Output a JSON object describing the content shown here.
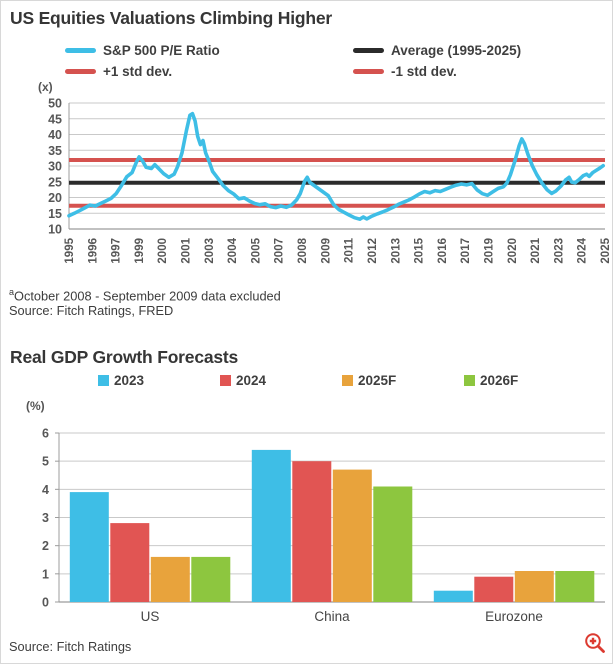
{
  "colors": {
    "series_cyan": "#3EBEE6",
    "series_red": "#D5524F",
    "series_black": "#2B2B2B",
    "bar_cyan": "#3EBEE6",
    "bar_red": "#E15553",
    "bar_orange": "#E8A33C",
    "bar_green": "#8DC63F",
    "grid": "#c9c9c9",
    "axis": "#9c9c9c",
    "zoom_icon_red": "#DC3A30"
  },
  "icons": {
    "zoom_button": "zoom-in-magnifier"
  },
  "chart_data": [
    {
      "type": "line",
      "title": "US Equities Valuations Climbing Higher",
      "unit_label": "(x)",
      "xlabel": "",
      "ylabel": "(x)",
      "ylim": [
        10,
        50
      ],
      "yticks": [
        10,
        15,
        20,
        25,
        30,
        35,
        40,
        45,
        50
      ],
      "x_range": [
        1995,
        2025.6
      ],
      "xtick_labels": [
        "1995",
        "1996",
        "1997",
        "1999",
        "2000",
        "2001",
        "2003",
        "2004",
        "2005",
        "2007",
        "2008",
        "2009",
        "2011",
        "2012",
        "2013",
        "2015",
        "2016",
        "2017",
        "2019",
        "2020",
        "2021",
        "2023",
        "2024",
        "2025"
      ],
      "grid": true,
      "legend_position": "top",
      "series": [
        {
          "name": "S&P 500 P/E Ratio",
          "type": "line",
          "color": "#3EBEE6",
          "points": [
            [
              1995.0,
              14.2
            ],
            [
              1995.3,
              15.0
            ],
            [
              1995.6,
              15.8
            ],
            [
              1995.9,
              16.7
            ],
            [
              1996.2,
              17.6
            ],
            [
              1996.5,
              17.3
            ],
            [
              1996.8,
              18.1
            ],
            [
              1997.1,
              18.9
            ],
            [
              1997.4,
              19.7
            ],
            [
              1997.7,
              21.3
            ],
            [
              1998.0,
              23.8
            ],
            [
              1998.3,
              26.6
            ],
            [
              1998.6,
              27.9
            ],
            [
              1998.85,
              31.2
            ],
            [
              1999.0,
              32.9
            ],
            [
              1999.2,
              31.6
            ],
            [
              1999.4,
              29.6
            ],
            [
              1999.7,
              29.2
            ],
            [
              1999.9,
              30.4
            ],
            [
              2000.1,
              29.3
            ],
            [
              2000.4,
              27.6
            ],
            [
              2000.7,
              26.4
            ],
            [
              2001.0,
              27.4
            ],
            [
              2001.2,
              29.8
            ],
            [
              2001.45,
              34.2
            ],
            [
              2001.7,
              41.2
            ],
            [
              2001.9,
              46.1
            ],
            [
              2002.05,
              46.6
            ],
            [
              2002.2,
              44.3
            ],
            [
              2002.35,
              39.4
            ],
            [
              2002.5,
              36.8
            ],
            [
              2002.65,
              38.1
            ],
            [
              2002.8,
              34.2
            ],
            [
              2003.0,
              31.5
            ],
            [
              2003.2,
              28.3
            ],
            [
              2003.5,
              26.1
            ],
            [
              2003.8,
              23.8
            ],
            [
              2004.1,
              22.2
            ],
            [
              2004.4,
              21.1
            ],
            [
              2004.7,
              19.6
            ],
            [
              2005.0,
              19.9
            ],
            [
              2005.3,
              18.9
            ],
            [
              2005.6,
              18.1
            ],
            [
              2005.9,
              17.7
            ],
            [
              2006.2,
              18.0
            ],
            [
              2006.5,
              17.1
            ],
            [
              2006.8,
              16.8
            ],
            [
              2007.1,
              17.3
            ],
            [
              2007.4,
              16.9
            ],
            [
              2007.7,
              17.6
            ],
            [
              2008.0,
              19.3
            ],
            [
              2008.2,
              21.2
            ],
            [
              2008.45,
              25.1
            ],
            [
              2008.6,
              26.4
            ],
            [
              2008.75,
              24.8
            ],
            [
              2009.8,
              20.6
            ],
            [
              2010.1,
              17.8
            ],
            [
              2010.4,
              16.2
            ],
            [
              2010.7,
              15.3
            ],
            [
              2011.0,
              14.4
            ],
            [
              2011.3,
              13.6
            ],
            [
              2011.6,
              13.1
            ],
            [
              2011.8,
              13.8
            ],
            [
              2012.0,
              13.2
            ],
            [
              2012.3,
              14.1
            ],
            [
              2012.6,
              14.8
            ],
            [
              2012.9,
              15.4
            ],
            [
              2013.2,
              16.1
            ],
            [
              2013.5,
              16.9
            ],
            [
              2013.8,
              17.8
            ],
            [
              2014.1,
              18.5
            ],
            [
              2014.4,
              19.2
            ],
            [
              2014.7,
              20.1
            ],
            [
              2015.0,
              21.1
            ],
            [
              2015.3,
              21.9
            ],
            [
              2015.6,
              21.5
            ],
            [
              2015.9,
              22.2
            ],
            [
              2016.2,
              21.9
            ],
            [
              2016.5,
              22.6
            ],
            [
              2016.8,
              23.3
            ],
            [
              2017.1,
              23.9
            ],
            [
              2017.4,
              24.3
            ],
            [
              2017.7,
              24.0
            ],
            [
              2018.0,
              24.4
            ],
            [
              2018.3,
              22.4
            ],
            [
              2018.6,
              21.2
            ],
            [
              2018.9,
              20.7
            ],
            [
              2019.2,
              21.8
            ],
            [
              2019.5,
              22.9
            ],
            [
              2019.8,
              23.4
            ],
            [
              2020.0,
              24.6
            ],
            [
              2020.2,
              27.2
            ],
            [
              2020.45,
              31.5
            ],
            [
              2020.7,
              36.5
            ],
            [
              2020.85,
              38.6
            ],
            [
              2021.0,
              37.1
            ],
            [
              2021.2,
              33.7
            ],
            [
              2021.45,
              30.1
            ],
            [
              2021.7,
              27.3
            ],
            [
              2022.0,
              24.6
            ],
            [
              2022.3,
              22.4
            ],
            [
              2022.55,
              21.3
            ],
            [
              2022.8,
              22.1
            ],
            [
              2023.1,
              23.7
            ],
            [
              2023.35,
              25.6
            ],
            [
              2023.55,
              26.4
            ],
            [
              2023.7,
              24.9
            ],
            [
              2023.9,
              24.7
            ],
            [
              2024.1,
              25.6
            ],
            [
              2024.35,
              26.9
            ],
            [
              2024.55,
              27.4
            ],
            [
              2024.7,
              26.7
            ],
            [
              2024.9,
              27.9
            ],
            [
              2025.1,
              28.6
            ],
            [
              2025.3,
              29.3
            ],
            [
              2025.5,
              30.1
            ]
          ]
        },
        {
          "name": "Average (1995-2025)",
          "type": "hline",
          "color": "#2B2B2B",
          "value": 24.7
        },
        {
          "name": "+1 std dev.",
          "type": "hline",
          "color": "#D5524F",
          "value": 31.9
        },
        {
          "name": "-1 std dev.",
          "type": "hline",
          "color": "#D5524F",
          "value": 17.4
        }
      ],
      "footnote_superscript": "a",
      "footnote": "October 2008 - September 2009 data excluded",
      "source": "Source: Fitch Ratings, FRED"
    },
    {
      "type": "bar",
      "title": "Real GDP Growth Forecasts",
      "unit_label": "(%)",
      "xlabel": "",
      "ylabel": "(%)",
      "categories": [
        "US",
        "China",
        "Eurozone"
      ],
      "series": [
        {
          "name": "2023",
          "color": "#3EBEE6",
          "values": [
            3.9,
            5.4,
            0.4
          ]
        },
        {
          "name": "2024",
          "color": "#E15553",
          "values": [
            2.8,
            5.0,
            0.9
          ]
        },
        {
          "name": "2025F",
          "color": "#E8A33C",
          "values": [
            1.6,
            4.7,
            1.1
          ]
        },
        {
          "name": "2026F",
          "color": "#8DC63F",
          "values": [
            1.6,
            4.1,
            1.1
          ]
        }
      ],
      "ylim": [
        0,
        6
      ],
      "yticks": [
        0,
        1,
        2,
        3,
        4,
        5,
        6
      ],
      "grid": true,
      "legend_position": "top",
      "source": "Source: Fitch Ratings"
    }
  ]
}
